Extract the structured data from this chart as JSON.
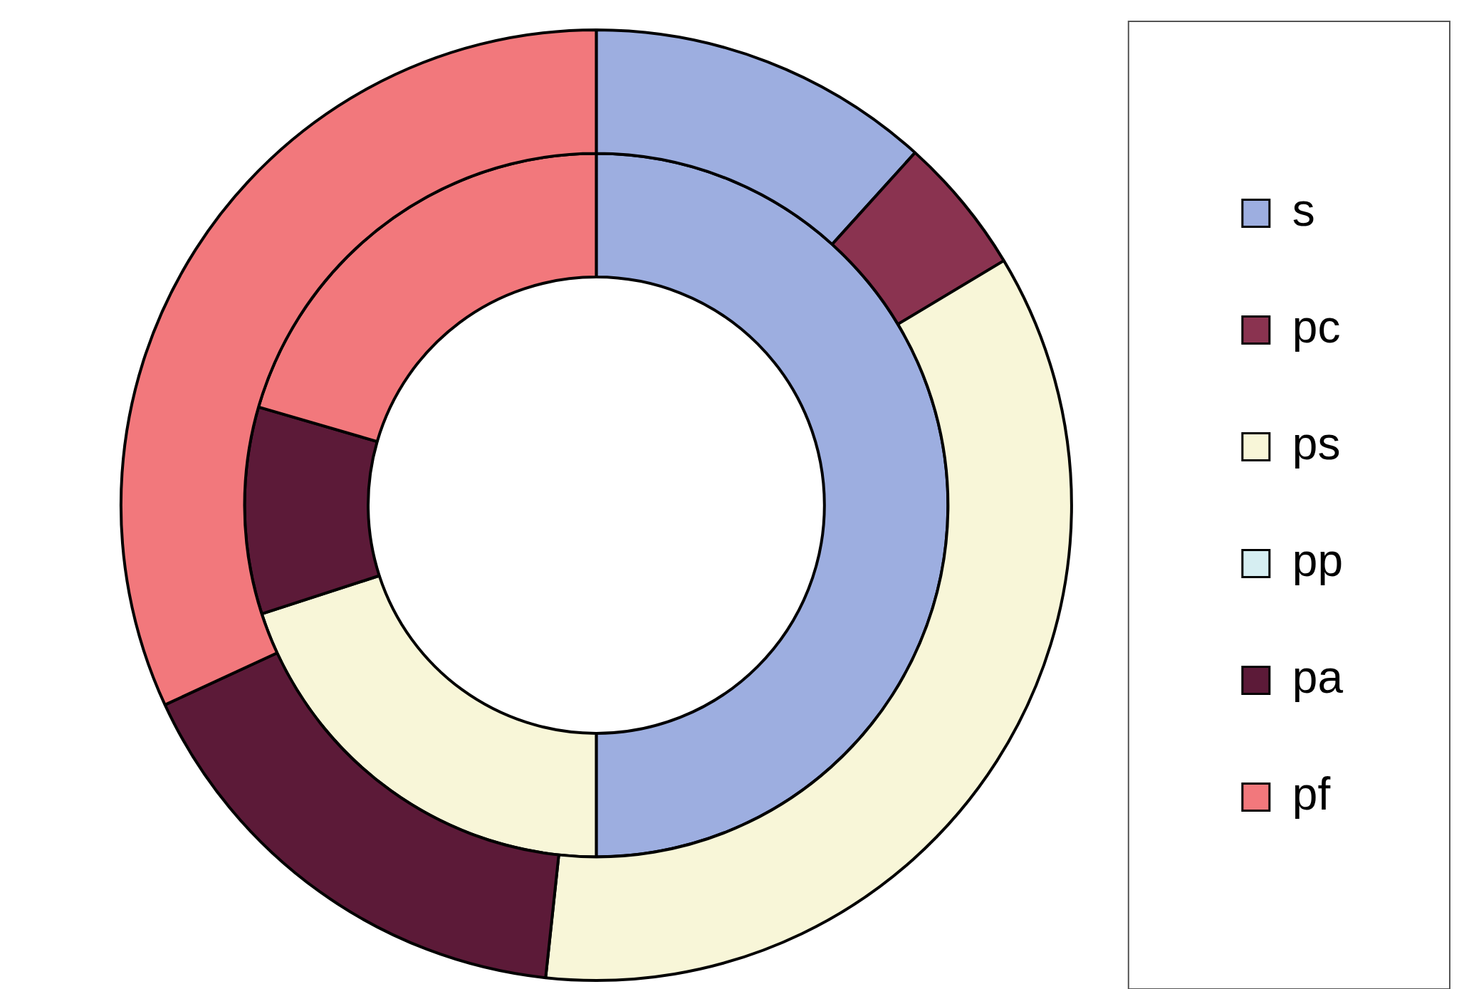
{
  "chart_data": {
    "type": "donut",
    "categories": [
      "s",
      "pc",
      "ps",
      "pp",
      "pa",
      "pf"
    ],
    "colors": [
      "#9daee0",
      "#8a3350",
      "#f8f6d8",
      "#d6eef2",
      "#5c1a38",
      "#f2787c"
    ],
    "series": [
      {
        "values": [
          11.7,
          4.7,
          35.3,
          0,
          16.4,
          31.9
        ]
      },
      {
        "values": [
          50,
          0,
          20,
          0,
          9.5,
          20.5
        ]
      }
    ],
    "legend": "right"
  }
}
